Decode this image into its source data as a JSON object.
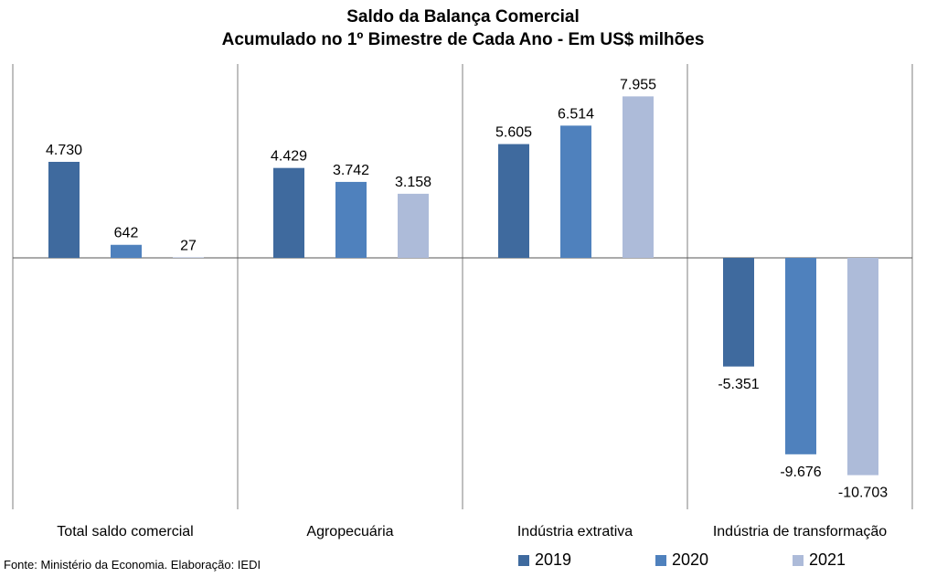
{
  "chart_data": {
    "type": "bar",
    "title": "Saldo da Balança Comercial",
    "subtitle": "Acumulado no 1º Bimestre de Cada Ano - Em US$ milhões",
    "categories": [
      "Total saldo comercial",
      "Agropecuária",
      "Indústria extrativa",
      "Indústria de transformação"
    ],
    "series": [
      {
        "name": "2019",
        "color": "#3f6a9e",
        "values": [
          4730,
          4429,
          5605,
          -5351
        ],
        "labels": [
          "4.730",
          "4.429",
          "5.605",
          "-5.351"
        ]
      },
      {
        "name": "2020",
        "color": "#4f81bd",
        "values": [
          642,
          3742,
          6514,
          -9676
        ],
        "labels": [
          "642",
          "3.742",
          "6.514",
          "-9.676"
        ]
      },
      {
        "name": "2021",
        "color": "#adbbd9",
        "values": [
          27,
          3158,
          7955,
          -10703
        ],
        "labels": [
          "27",
          "3.158",
          "7.955",
          "-10.703"
        ]
      }
    ],
    "xlabel": "",
    "ylabel": "",
    "legend": "bottom",
    "grid": false
  },
  "source_text": "Fonte: Ministério da Economia. Elaboração: IEDI"
}
